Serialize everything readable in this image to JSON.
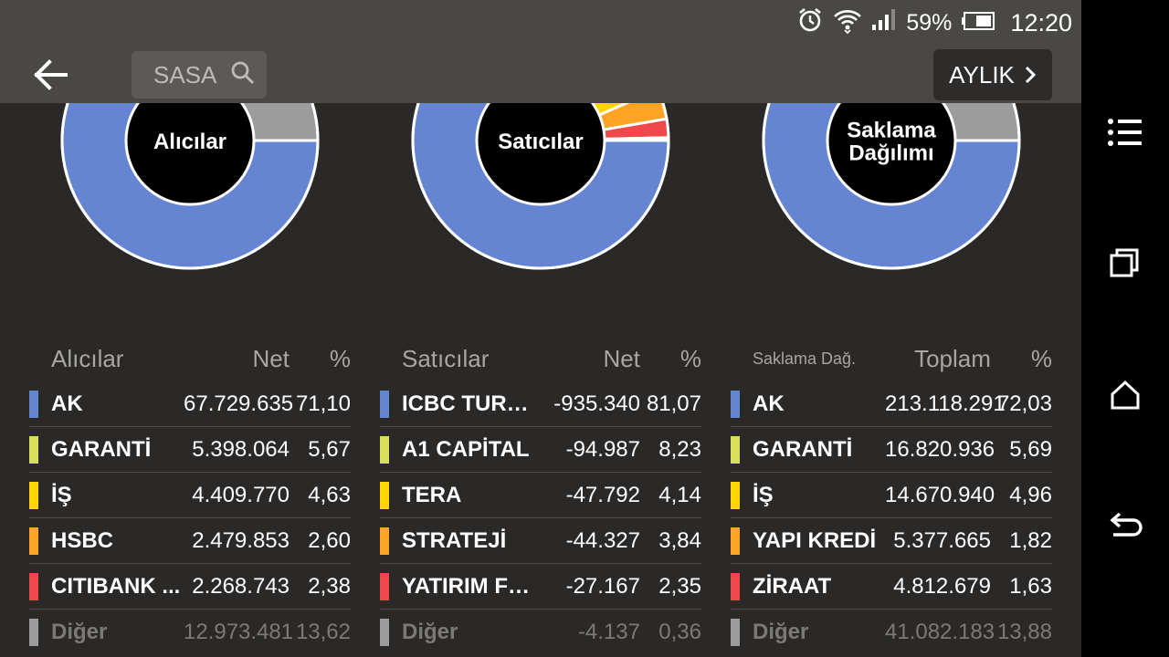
{
  "status_bar": {
    "battery": "59%",
    "time": "12:20"
  },
  "app_bar": {
    "search_placeholder": "SASA",
    "period_label": "AYLIK"
  },
  "panels": [
    {
      "id": "buyers",
      "chart_title": "Alıcılar",
      "header": {
        "name": "Alıcılar",
        "value": "Net",
        "pct": "%"
      },
      "rows": [
        {
          "name": "AK",
          "value": "67.729.635",
          "pct": "71,10",
          "color": "#6584d2"
        },
        {
          "name": "GARANTİ",
          "value": "5.398.064",
          "pct": "5,67",
          "color": "#d8e05a"
        },
        {
          "name": "İŞ",
          "value": "4.409.770",
          "pct": "4,63",
          "color": "#ffd400"
        },
        {
          "name": "HSBC",
          "value": "2.479.853",
          "pct": "2,60",
          "color": "#ffa424"
        },
        {
          "name": "CITIBANK ...",
          "value": "2.268.743",
          "pct": "2,38",
          "color": "#f0474a"
        },
        {
          "name": "Diğer",
          "value": "12.973.481",
          "pct": "13,62",
          "color": "#9c9c9c",
          "dim": true
        }
      ]
    },
    {
      "id": "sellers",
      "chart_title": "Satıcılar",
      "header": {
        "name": "Satıcılar",
        "value": "Net",
        "pct": "%"
      },
      "rows": [
        {
          "name": "ICBC TURK...",
          "value": "-935.340",
          "pct": "81,07",
          "color": "#6584d2"
        },
        {
          "name": "A1 CAPİTAL",
          "value": "-94.987",
          "pct": "8,23",
          "color": "#d8e05a"
        },
        {
          "name": "TERA",
          "value": "-47.792",
          "pct": "4,14",
          "color": "#ffd400"
        },
        {
          "name": "STRATEJİ",
          "value": "-44.327",
          "pct": "3,84",
          "color": "#ffa424"
        },
        {
          "name": "YATIRIM FON...",
          "value": "-27.167",
          "pct": "2,35",
          "color": "#f0474a"
        },
        {
          "name": "Diğer",
          "value": "-4.137",
          "pct": "0,36",
          "color": "#9c9c9c",
          "dim": true
        }
      ]
    },
    {
      "id": "custody",
      "chart_title": "Saklama Dağılımı",
      "header": {
        "name": "Saklama Dağ.",
        "value": "Toplam",
        "pct": "%"
      },
      "rows": [
        {
          "name": "AK",
          "value": "213.118.291",
          "pct": "72,03",
          "color": "#6584d2"
        },
        {
          "name": "GARANTİ",
          "value": "16.820.936",
          "pct": "5,69",
          "color": "#d8e05a"
        },
        {
          "name": "İŞ",
          "value": "14.670.940",
          "pct": "4,96",
          "color": "#ffd400"
        },
        {
          "name": "YAPI KREDİ",
          "value": "5.377.665",
          "pct": "1,82",
          "color": "#ffa424"
        },
        {
          "name": "ZİRAAT",
          "value": "4.812.679",
          "pct": "1,63",
          "color": "#f0474a"
        },
        {
          "name": "Diğer",
          "value": "41.082.183",
          "pct": "13,88",
          "color": "#9c9c9c",
          "dim": true
        }
      ]
    }
  ],
  "icons": {
    "back": "arrow-left-icon",
    "search": "search-icon",
    "period": "chevron-right-icon",
    "nav_menu": "menu-icon",
    "nav_recents": "recents-icon",
    "nav_home": "home-icon",
    "nav_back": "return-icon"
  }
}
